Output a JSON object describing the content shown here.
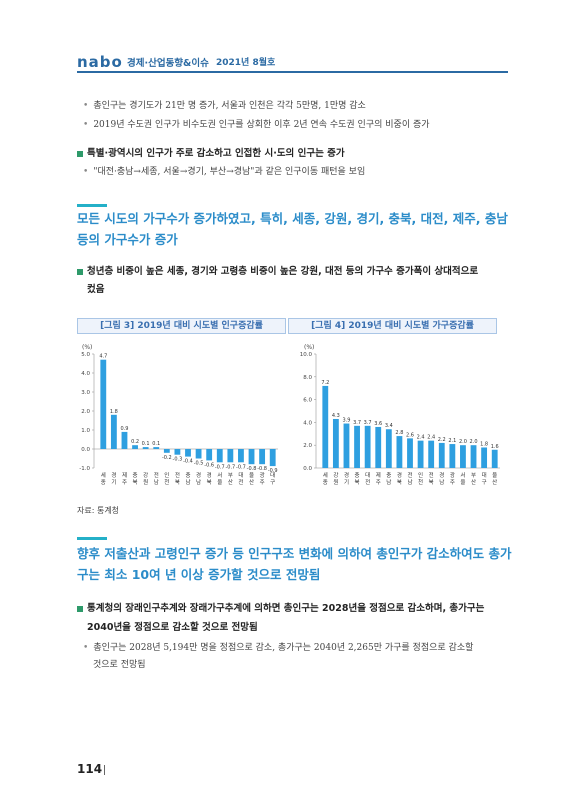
{
  "header": {
    "logo": "nabo",
    "series": "경제·산업동향&이슈",
    "issue": "2021년 8월호"
  },
  "bullets_top": [
    "총인구는 경기도가 21만 명 증가, 서울과 인천은 각각 5만명, 1만명 감소",
    "2019년 수도권 인구가 비수도권 인구를 상회한 이후 2년 연속 수도권 인구의 비중이 증가"
  ],
  "sub1": {
    "heading": "특별·광역시의 인구가 주로 감소하고 인접한 시·도의 인구는 증가",
    "bullet": "\"대전·충남→세종, 서울→경기, 부산→경남\"과 같은 인구이동 패턴을 보임"
  },
  "section1": {
    "heading": [
      "모든 시도의 가구수가 증가하였고, 특히, 세종, 강원, 경기, 충북, 대전, 제주, 충남",
      "등의 가구수가 증가"
    ],
    "sub": [
      "청년층 비중이 높은 세종, 경기와 고령층 비중이 높은 강원, 대전 등의 가구수 증가폭이 상대적으로",
      "컸음"
    ]
  },
  "captions": {
    "fig3": "[그림 3] 2019년 대비 시도별 인구증감률",
    "fig4": "[그림 4] 2019년 대비 시도별 가구증감률"
  },
  "source": "자료: 통계청",
  "section2": {
    "heading": [
      "향후 저출산과 고령인구 증가 등 인구구조 변화에 의하여 총인구가 감소하여도 총가",
      "구는 최소 10여 년 이상 증가할 것으로 전망됨"
    ],
    "sub": [
      "통계청의 장래인구추계와 장래가구추계에 의하면 총인구는 2028년을 정점으로 감소하며, 총가구는",
      "2040년을 정점으로 감소할 것으로 전망됨"
    ],
    "bullet": [
      "총인구는 2028년 5,194만 명을 정점으로 감소, 총가구는 2040년 2,265만 가구를 정점으로 감소할",
      "것으로 전망됨"
    ]
  },
  "page_number": "114",
  "colors": {
    "accent": "#2b8cc9",
    "bar": "#2e9fe0",
    "marker": "#2e9a6a"
  },
  "chart_data": [
    {
      "type": "bar",
      "unit": "(%)",
      "categories": [
        "세종",
        "경기",
        "제주",
        "충북",
        "강원",
        "전남",
        "인천",
        "전북",
        "충남",
        "경남",
        "경북",
        "서울",
        "부산",
        "대전",
        "울산",
        "광주",
        "대구"
      ],
      "values": [
        4.7,
        1.8,
        0.9,
        0.2,
        0.1,
        0.1,
        -0.2,
        -0.3,
        -0.4,
        -0.5,
        -0.6,
        -0.7,
        -0.7,
        -0.7,
        -0.8,
        -0.8,
        -0.9
      ],
      "ylim": [
        -1.0,
        5.0
      ],
      "yticks": [
        5.0,
        4.0,
        3.0,
        2.0,
        1.0,
        0.0,
        -1.0
      ]
    },
    {
      "type": "bar",
      "unit": "(%)",
      "categories": [
        "세종",
        "강원",
        "경기",
        "충북",
        "대전",
        "제주",
        "충남",
        "경북",
        "전남",
        "인천",
        "전북",
        "경남",
        "광주",
        "서울",
        "부산",
        "대구",
        "울산"
      ],
      "values": [
        7.2,
        4.3,
        3.9,
        3.7,
        3.7,
        3.6,
        3.4,
        2.8,
        2.6,
        2.4,
        2.4,
        2.2,
        2.1,
        2.0,
        2.0,
        1.8,
        1.6
      ],
      "ylim": [
        0.0,
        10.0
      ],
      "yticks": [
        10.0,
        8.0,
        6.0,
        4.0,
        2.0,
        0.0
      ]
    }
  ]
}
